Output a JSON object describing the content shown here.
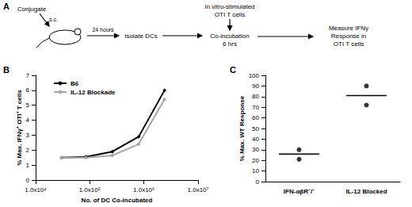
{
  "diagram": {
    "label": "A",
    "steps": [
      {
        "lines": [
          "Conjugate"
        ]
      },
      {
        "lines": [
          "s.c."
        ]
      },
      {
        "lines": [
          "24 hours"
        ]
      },
      {
        "lines": [
          "Isolate DCs"
        ]
      },
      {
        "lines": [
          "In vitro-stimulated",
          "OTI T cells"
        ]
      },
      {
        "lines": [
          "Co-incubation",
          "6 hrs"
        ]
      },
      {
        "lines": [
          "Measure IFNγ",
          "Response in",
          "OTI T cells"
        ]
      }
    ]
  },
  "chart_data": [
    {
      "label": "B",
      "type": "line",
      "x": [
        30000,
        85000,
        260000,
        800000,
        2400000
      ],
      "series": [
        {
          "name": "B6",
          "color": "#000000",
          "values": [
            1.5,
            1.55,
            1.9,
            2.9,
            6.0
          ]
        },
        {
          "name": "IL-12 Blockade",
          "color": "#a6a6a6",
          "values": [
            1.5,
            1.5,
            1.65,
            2.4,
            5.4
          ]
        }
      ],
      "xlabel": "No. of DC Co-incubated",
      "ylabel": "% Max. IFNγ⁺ OTI⁺ T cells",
      "xlim": [
        10000,
        10000000
      ],
      "xticks": [
        {
          "value": 10000,
          "label": "1.0x10⁴"
        },
        {
          "value": 100000,
          "label": "1.0x10⁵"
        },
        {
          "value": 1000000,
          "label": "1.0x10⁶"
        },
        {
          "value": 10000000,
          "label": "1.0x10⁷"
        }
      ],
      "ylim": [
        0,
        7
      ],
      "yticks": [
        0,
        1,
        2,
        3,
        4,
        5,
        6,
        7
      ],
      "log": "x",
      "grid": false,
      "legend": "top-left",
      "marker": "circle"
    },
    {
      "label": "C",
      "type": "scatter",
      "categories": [
        "IFN-αβR⁻/⁻",
        "IL-12 Blocked"
      ],
      "values": [
        [
          21,
          30
        ],
        [
          72,
          90
        ]
      ],
      "means": [
        26,
        81
      ],
      "ylabel": "% Max. WT Response",
      "ylim": [
        0,
        100
      ],
      "yticks": [
        0,
        10,
        20,
        30,
        40,
        50,
        60,
        70,
        80,
        90,
        100
      ],
      "color": "#000000",
      "grid": false,
      "marker": "circle"
    }
  ]
}
